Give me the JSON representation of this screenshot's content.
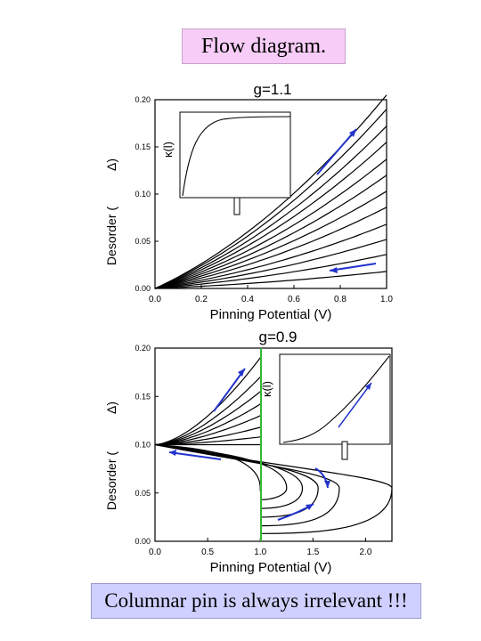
{
  "title": "Flow diagram.",
  "footer": "Columnar pin is always irrelevant !!!",
  "colors": {
    "curve": "#000000",
    "arrow": "#2233cc",
    "vline": "#33bb33",
    "title_bg": "#f7cdf7",
    "footer_bg": "#cfd0ff"
  },
  "chart_data": [
    {
      "type": "line",
      "title": "g=1.1",
      "xlabel": "Pinning Potential (V)",
      "ylabel": "Δ)",
      "ylabel_rotated_glyphs": "Desorder (",
      "xlim": [
        0,
        1.0
      ],
      "ylim": [
        0,
        0.2
      ],
      "xticks": [
        "0.0",
        "0.2",
        "0.4",
        "0.6",
        "0.8",
        "1.0"
      ],
      "yticks": [
        "0.00",
        "0.05",
        "0.10",
        "0.15",
        "0.20"
      ],
      "series": [
        {
          "values_at_x1": 0.018
        },
        {
          "values_at_x1": 0.036
        },
        {
          "values_at_x1": 0.052
        },
        {
          "values_at_x1": 0.068
        },
        {
          "values_at_x1": 0.086
        },
        {
          "values_at_x1": 0.103
        },
        {
          "values_at_x1": 0.12
        },
        {
          "values_at_x1": 0.137
        },
        {
          "values_at_x1": 0.155
        },
        {
          "values_at_x1": 0.172
        },
        {
          "values_at_x1": 0.19
        },
        {
          "values_at_x1": 0.205
        }
      ],
      "inset": {
        "ylabel": "κ(l)",
        "xlabel": "l",
        "curve": "saturating"
      }
    },
    {
      "type": "line",
      "title": "g=0.9",
      "xlabel": "Pinning Potential (V)",
      "ylabel": "Δ)",
      "ylabel_rotated_glyphs": "Desorder (",
      "xlim": [
        0,
        2.25
      ],
      "ylim": [
        0,
        0.2
      ],
      "xticks": [
        "0.0",
        "0.5",
        "1.0",
        "1.5",
        "2.0"
      ],
      "yticks": [
        "0.00",
        "0.05",
        "0.10",
        "0.15",
        "0.20"
      ],
      "vertical_line_x": 1.0,
      "upper_end_y": [
        0.108,
        0.118,
        0.13,
        0.142,
        0.155,
        0.17,
        0.19
      ],
      "lower_turn_x": [
        1.0,
        1.25,
        1.4,
        1.55,
        1.75,
        2.25
      ],
      "inset": {
        "ylabel": "κ(l)",
        "xlabel": "l",
        "curve": "growing"
      }
    }
  ]
}
